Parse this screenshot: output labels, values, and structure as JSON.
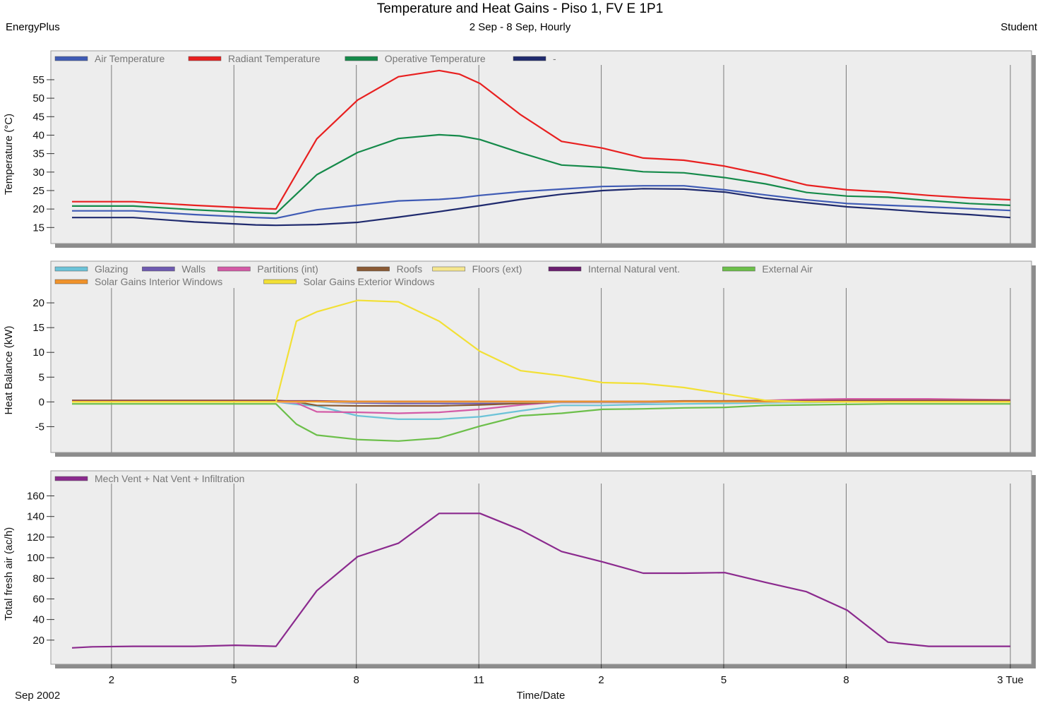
{
  "header": {
    "title": "Temperature and Heat Gains - Piso 1, FV E 1P1",
    "subtitle": "2 Sep - 8 Sep, Hourly",
    "app_left": "EnergyPlus",
    "app_right": "Student"
  },
  "x_axis": {
    "label": "Time/Date",
    "period_label": "Sep 2002",
    "tick_labels": [
      "2",
      "5",
      "8",
      "11",
      "2",
      "5",
      "8",
      "3 Tue"
    ]
  },
  "chart_data": [
    {
      "type": "line",
      "ylabel": "Temperature (°C)",
      "ylim": [
        12,
        59
      ],
      "yticks": [
        15,
        20,
        25,
        30,
        35,
        40,
        45,
        50,
        55
      ],
      "grid": "vertical",
      "legend_position": "top-left",
      "x_hours": [
        0,
        3,
        6,
        9,
        10,
        12,
        14,
        16,
        18,
        19,
        20,
        22,
        24,
        26,
        28,
        30,
        32,
        34,
        36,
        38,
        40,
        42,
        44,
        46
      ],
      "series": [
        {
          "name": "Air Temperature",
          "color": "#3f5bb5",
          "values": [
            19.5,
            19.5,
            18.5,
            17.7,
            17.5,
            19.8,
            21,
            22.2,
            22.6,
            23,
            23.7,
            24.7,
            25.4,
            26.1,
            26.3,
            26.3,
            25.2,
            23.8,
            22.5,
            21.5,
            21,
            20.6,
            20.1,
            19.6
          ]
        },
        {
          "name": "Radiant Temperature",
          "color": "#e82020",
          "values": [
            22,
            22,
            21,
            20.2,
            20,
            39,
            49.5,
            55.8,
            57.5,
            56.5,
            54,
            45.5,
            38.3,
            36.5,
            33.8,
            33.2,
            31.6,
            29.3,
            26.5,
            25.2,
            24.6,
            23.7,
            23,
            22.5
          ]
        },
        {
          "name": "Operative Temperature",
          "color": "#158a4a",
          "values": [
            20.8,
            20.8,
            19.8,
            19,
            18.8,
            29.3,
            35.3,
            39.1,
            40.1,
            39.8,
            38.8,
            35.2,
            31.9,
            31.3,
            30.1,
            29.8,
            28.5,
            26.8,
            24.5,
            23.5,
            23.2,
            22.3,
            21.5,
            21
          ]
        },
        {
          "name": "-",
          "color": "#1f2a6e",
          "values": [
            17.7,
            17.7,
            16.5,
            15.7,
            15.6,
            15.8,
            16.4,
            17.8,
            19.3,
            20.1,
            20.9,
            22.6,
            24,
            25,
            25.5,
            25.4,
            24.6,
            22.9,
            21.7,
            20.6,
            19.9,
            19.1,
            18.5,
            17.7
          ]
        }
      ]
    },
    {
      "type": "line",
      "ylabel": "Heat Balance (kW)",
      "ylim": [
        -9.5,
        23
      ],
      "yticks": [
        -5,
        0,
        5,
        10,
        15,
        20
      ],
      "grid": "vertical",
      "legend_position": "top-left",
      "x_hours": [
        0,
        3,
        5,
        5.6,
        10,
        11,
        12,
        14,
        16,
        18,
        20,
        22,
        24,
        26,
        28,
        30,
        32,
        34,
        36,
        38,
        40,
        42,
        44,
        46
      ],
      "series": [
        {
          "name": "Glazing",
          "color": "#6cc3d8",
          "values": [
            0,
            0,
            0,
            0,
            0,
            -0.5,
            -0.8,
            -2.8,
            -3.5,
            -3.5,
            -3,
            -1.8,
            -0.7,
            -0.7,
            -0.5,
            -0.4,
            -0.3,
            -0.2,
            -0.1,
            0,
            0,
            0,
            0,
            0
          ]
        },
        {
          "name": "Walls",
          "color": "#6e5ab0",
          "values": [
            0.1,
            0.1,
            0.1,
            0.1,
            0.1,
            0,
            0,
            -0.2,
            -0.3,
            -0.3,
            -0.3,
            -0.2,
            -0.1,
            -0.1,
            -0.1,
            0,
            0,
            0,
            0,
            0.1,
            0.1,
            0.1,
            0.1,
            0.1
          ]
        },
        {
          "name": "Partitions (int)",
          "color": "#d35aa6",
          "values": [
            0,
            0,
            0,
            0,
            0,
            -0.2,
            -2,
            -2.1,
            -2.3,
            -2.1,
            -1.5,
            -0.6,
            0,
            0,
            0,
            0,
            0.2,
            0.3,
            0.5,
            0.6,
            0.6,
            0.6,
            0.5,
            0.4
          ]
        },
        {
          "name": "Roofs",
          "color": "#8a5a35",
          "values": [
            0.3,
            0.3,
            0.3,
            0.3,
            0.3,
            0,
            -0.7,
            -0.8,
            -0.8,
            -0.8,
            -0.6,
            -0.3,
            0,
            0.1,
            0.1,
            0.2,
            0.2,
            0.2,
            0.2,
            0.3,
            0.3,
            0.3,
            0.3,
            0.3
          ]
        },
        {
          "name": "Floors (ext)",
          "color": "#f5e68e",
          "values": [
            0,
            0,
            0,
            0,
            0,
            0,
            0,
            0,
            0,
            0,
            0,
            0,
            0,
            0,
            0,
            0,
            0,
            0,
            0,
            0,
            0,
            0,
            0,
            0
          ]
        },
        {
          "name": "Internal Natural vent.",
          "color": "#6a1e6e",
          "values": [
            0.2,
            0.2,
            0.2,
            0.2,
            0.2,
            0.2,
            0.2,
            0.1,
            0.1,
            0.1,
            0.1,
            0.1,
            0.1,
            0.1,
            0.1,
            0.1,
            0.1,
            0.1,
            0.2,
            0.2,
            0.2,
            0.2,
            0.2,
            0.2
          ]
        },
        {
          "name": "External Air",
          "color": "#6cbf4a",
          "values": [
            -0.4,
            -0.4,
            -0.4,
            -0.4,
            -0.4,
            -4.5,
            -6.7,
            -7.6,
            -7.9,
            -7.3,
            -4.9,
            -2.8,
            -2.3,
            -1.5,
            -1.4,
            -1.2,
            -1.1,
            -0.7,
            -0.6,
            -0.5,
            -0.4,
            -0.4,
            -0.4,
            -0.4
          ]
        },
        {
          "name": "Solar Gains Interior Windows",
          "color": "#f0922a",
          "values": [
            0.1,
            0.1,
            0.1,
            0.1,
            0.1,
            0.1,
            0.1,
            0.1,
            0.1,
            0.1,
            0.1,
            0.1,
            0.1,
            0.1,
            0.1,
            0.1,
            0.1,
            0.1,
            0.1,
            0.1,
            0.1,
            0.1,
            0.1,
            0.1
          ]
        },
        {
          "name": "Solar Gains Exterior Windows",
          "color": "#f2e035",
          "values": [
            0,
            0,
            0,
            0,
            0,
            16.3,
            18.2,
            20.5,
            20.2,
            16.3,
            10.2,
            6.3,
            5.3,
            3.9,
            3.7,
            2.9,
            1.6,
            0.3,
            0,
            0,
            0,
            0,
            0,
            0
          ]
        }
      ]
    },
    {
      "type": "line",
      "ylabel": "Total fresh air (ac/h)",
      "ylim": [
        0,
        172
      ],
      "yticks": [
        20,
        40,
        60,
        80,
        100,
        120,
        140,
        160
      ],
      "grid": "vertical",
      "legend_position": "top-left",
      "x_hours": [
        0,
        1,
        3,
        6,
        8,
        10,
        12,
        14,
        16,
        18,
        20,
        22,
        24,
        26,
        28,
        30,
        32,
        34,
        36,
        38,
        40,
        42,
        44,
        46
      ],
      "series": [
        {
          "name": "Mech Vent + Nat Vent + Infiltration",
          "color": "#8b2a8e",
          "values": [
            12.5,
            13.5,
            14,
            14,
            15,
            14,
            68,
            101,
            114,
            143,
            143,
            127,
            106,
            96,
            85,
            85,
            85.5,
            76,
            67,
            49,
            18,
            14,
            14,
            14
          ]
        }
      ]
    }
  ]
}
